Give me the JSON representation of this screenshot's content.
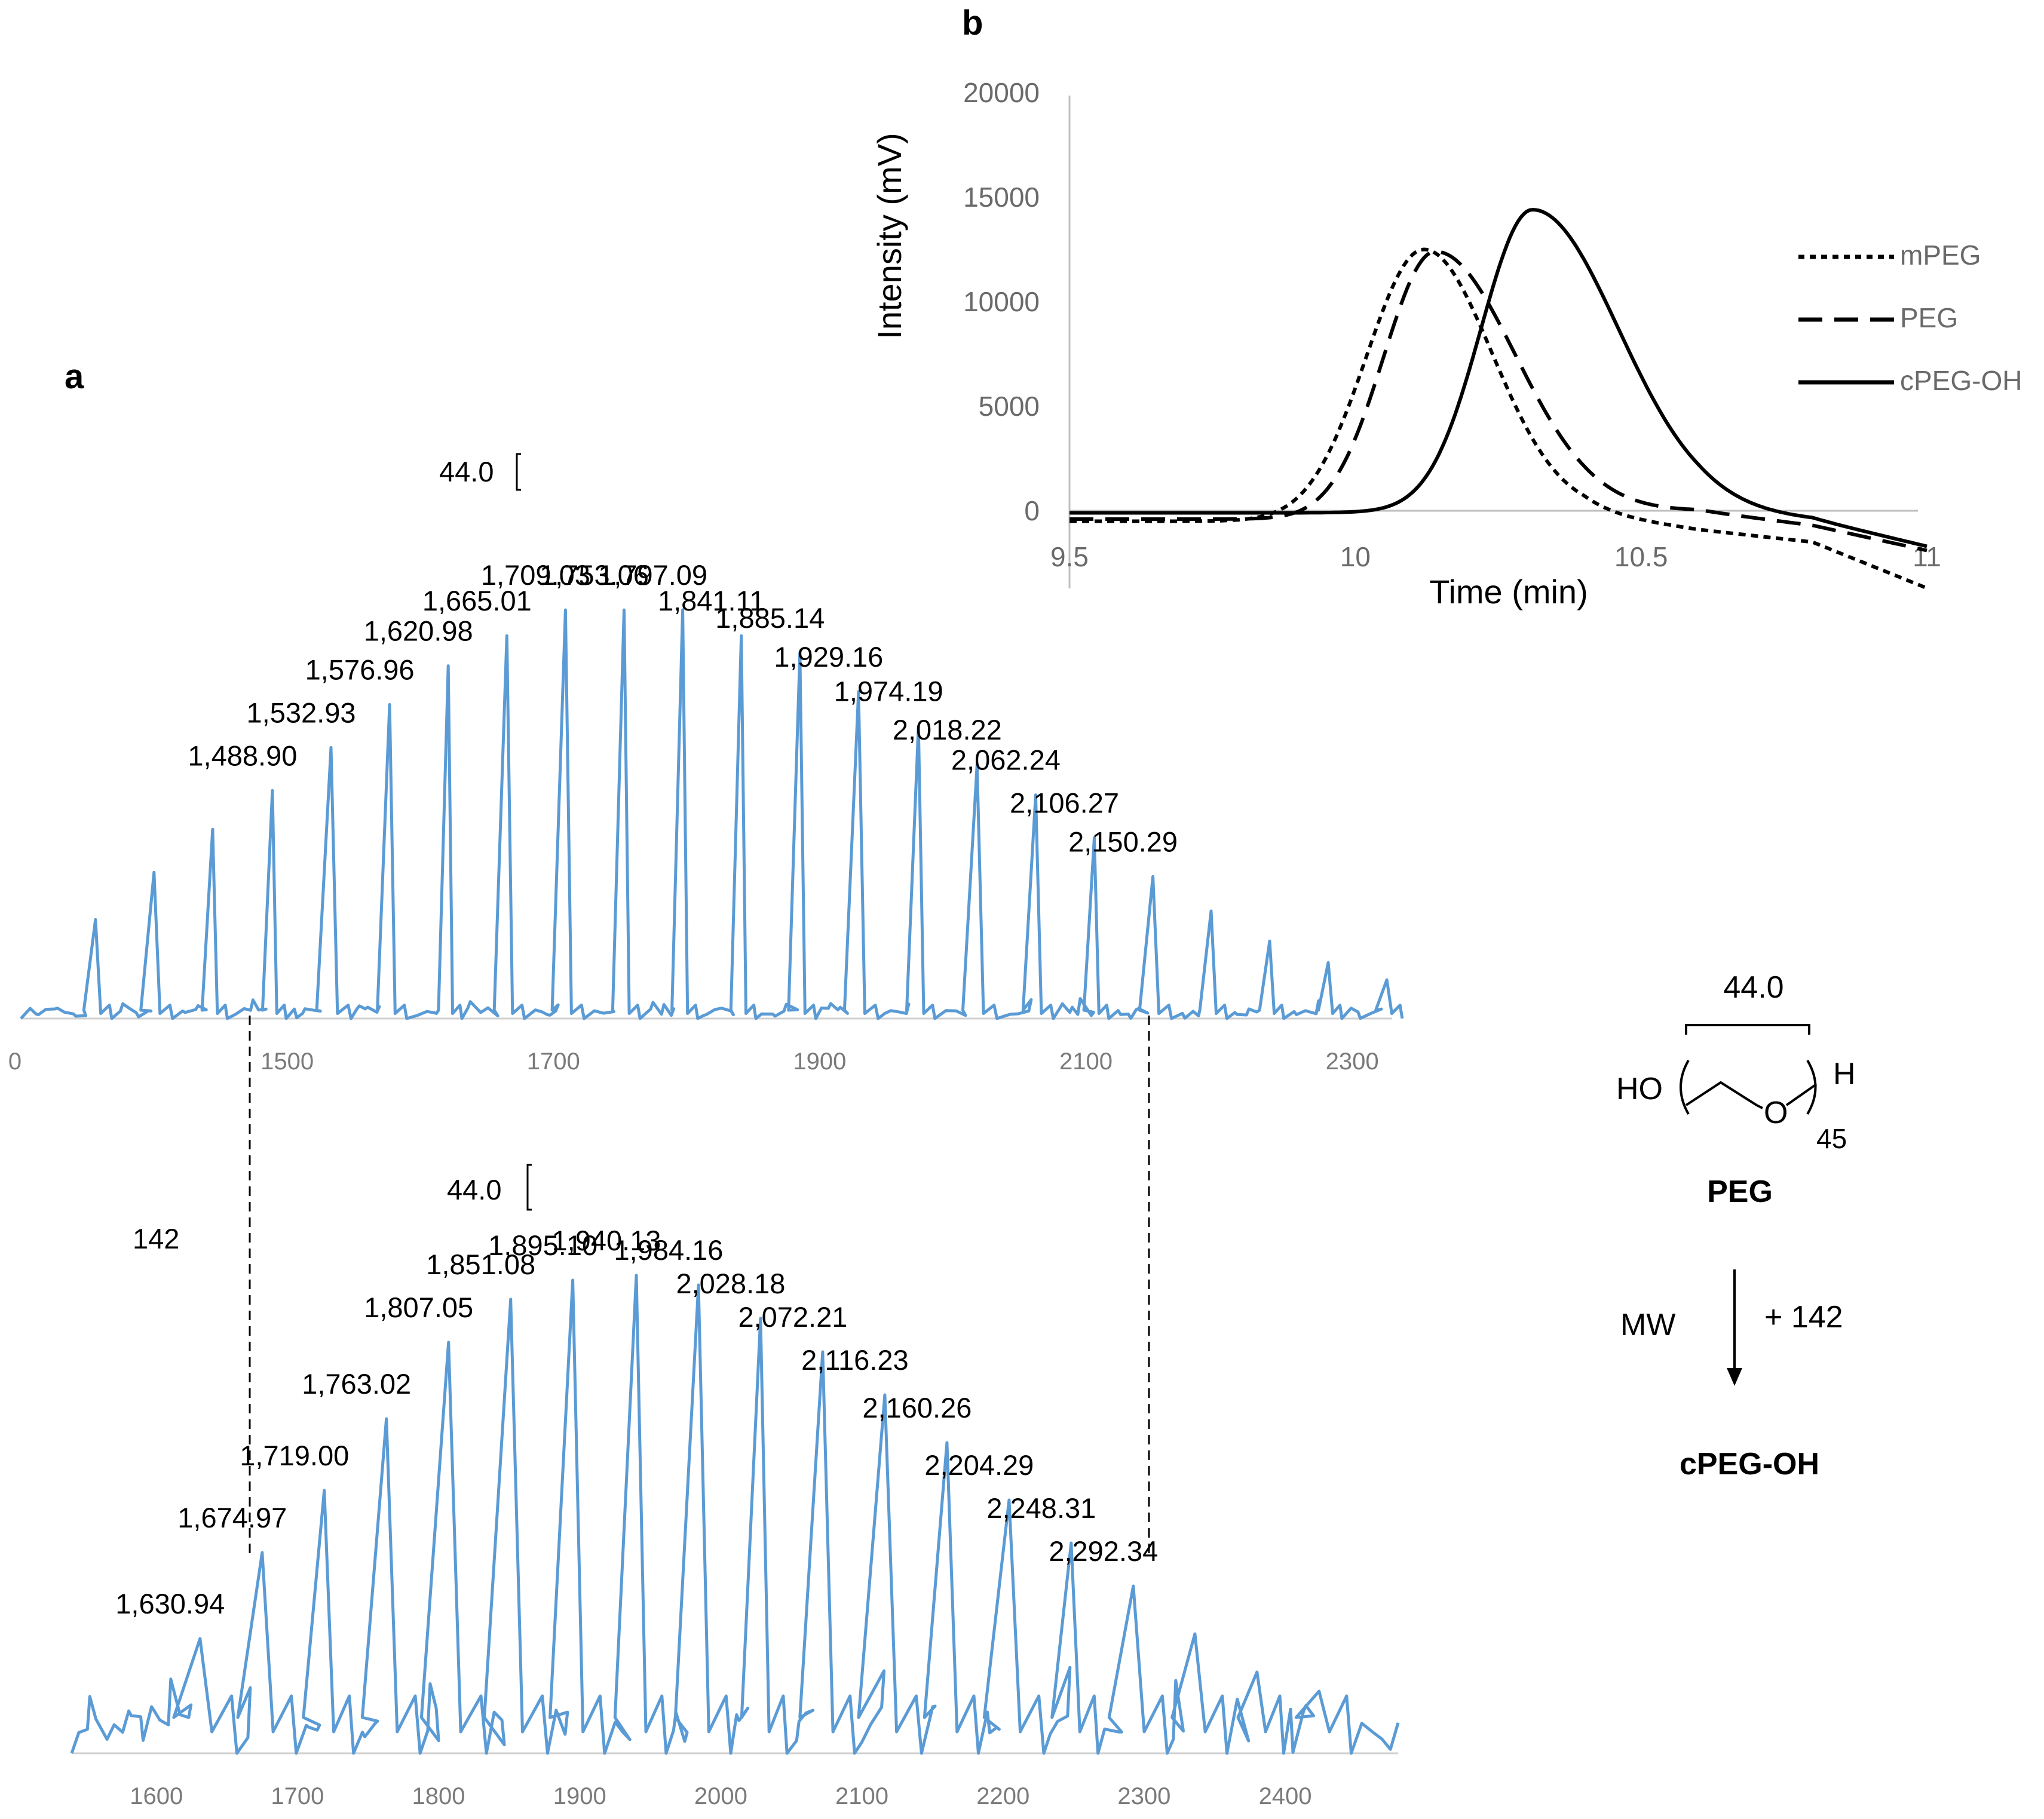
{
  "chart_data": [
    {
      "type": "line",
      "panel": "a",
      "subplot": "upper",
      "xlabel": "",
      "ylabel": "",
      "xlim": [
        1300,
        2330
      ],
      "x_tick_labels": [
        "0",
        "1500",
        "1700",
        "1900",
        "2100",
        "2300"
      ],
      "spacing_annotation": "44.0",
      "peaks": [
        {
          "x": 1356,
          "h": 0.23
        },
        {
          "x": 1400,
          "h": 0.34
        },
        {
          "x": 1444,
          "h": 0.44
        },
        {
          "x": 1488.9,
          "h": 0.53,
          "label": "1,488.90"
        },
        {
          "x": 1532.93,
          "h": 0.63,
          "label": "1,532.93"
        },
        {
          "x": 1576.96,
          "h": 0.73,
          "label": "1,576.96"
        },
        {
          "x": 1620.98,
          "h": 0.82,
          "label": "1,620.98"
        },
        {
          "x": 1665.01,
          "h": 0.89,
          "label": "1,665.01"
        },
        {
          "x": 1709.03,
          "h": 0.95,
          "label": "1,709.03"
        },
        {
          "x": 1753.06,
          "h": 0.95,
          "label": "1,753.06"
        },
        {
          "x": 1797.09,
          "h": 0.95,
          "label": "1,797.09"
        },
        {
          "x": 1841.11,
          "h": 0.89,
          "label": "1,841.11"
        },
        {
          "x": 1885.14,
          "h": 0.85,
          "label": "1,885.14"
        },
        {
          "x": 1929.16,
          "h": 0.76,
          "label": "1,929.16"
        },
        {
          "x": 1974.19,
          "h": 0.68,
          "label": "1,974.19"
        },
        {
          "x": 2018.22,
          "h": 0.59,
          "label": "2,018.22"
        },
        {
          "x": 2062.24,
          "h": 0.52,
          "label": "2,062.24"
        },
        {
          "x": 2106.27,
          "h": 0.42,
          "label": "2,106.27"
        },
        {
          "x": 2150.29,
          "h": 0.33,
          "label": "2,150.29"
        },
        {
          "x": 2194,
          "h": 0.25
        },
        {
          "x": 2238,
          "h": 0.18
        },
        {
          "x": 2282,
          "h": 0.13
        },
        {
          "x": 2326,
          "h": 0.09
        }
      ]
    },
    {
      "type": "line",
      "panel": "a",
      "subplot": "lower",
      "xlabel": "",
      "ylabel": "",
      "xlim": [
        1540,
        2480
      ],
      "x_tick_labels": [
        "1600",
        "1700",
        "1800",
        "1900",
        "2000",
        "2100",
        "2200",
        "2300",
        "2400"
      ],
      "spacing_annotation": "44.0",
      "mass_shift_label": "142",
      "peaks": [
        {
          "x": 1630.94,
          "h": 0.24,
          "label": "1,630.94"
        },
        {
          "x": 1674.97,
          "h": 0.42,
          "label": "1,674.97"
        },
        {
          "x": 1719.0,
          "h": 0.55,
          "label": "1,719.00"
        },
        {
          "x": 1763.02,
          "h": 0.7,
          "label": "1,763.02"
        },
        {
          "x": 1807.05,
          "h": 0.86,
          "label": "1,807.05"
        },
        {
          "x": 1851.08,
          "h": 0.95,
          "label": "1,851.08"
        },
        {
          "x": 1895.1,
          "h": 0.99,
          "label": "1,895.10"
        },
        {
          "x": 1940.13,
          "h": 1.0,
          "label": "1,940.13"
        },
        {
          "x": 1984.16,
          "h": 0.98,
          "label": "1,984.16"
        },
        {
          "x": 2028.18,
          "h": 0.91,
          "label": "2,028.18"
        },
        {
          "x": 2072.21,
          "h": 0.84,
          "label": "2,072.21"
        },
        {
          "x": 2116.23,
          "h": 0.75,
          "label": "2,116.23"
        },
        {
          "x": 2160.26,
          "h": 0.65,
          "label": "2,160.26"
        },
        {
          "x": 2204.29,
          "h": 0.53,
          "label": "2,204.29"
        },
        {
          "x": 2248.31,
          "h": 0.44,
          "label": "2,248.31"
        },
        {
          "x": 2292.34,
          "h": 0.35,
          "label": "2,292.34"
        },
        {
          "x": 2336,
          "h": 0.25
        },
        {
          "x": 2380,
          "h": 0.17
        },
        {
          "x": 2424,
          "h": 0.13
        }
      ]
    },
    {
      "type": "line",
      "panel": "b",
      "xlabel": "Time (min)",
      "ylabel": "Intensity (mV)",
      "xlim": [
        9.5,
        11
      ],
      "ylim": [
        -2000,
        20000
      ],
      "x_ticks": [
        "9.5",
        "10",
        "10.5",
        "11"
      ],
      "y_ticks": [
        "20000",
        "15000",
        "10000",
        "5000",
        "0"
      ],
      "legend_position": "right",
      "series": [
        {
          "name": "mPEG",
          "style": "dotted",
          "peak_x": 10.12,
          "peak_y": 12500,
          "sigma_left": 0.1,
          "sigma_right": 0.12,
          "start_y": -500,
          "tail": [
            [
              10.6,
              -900
            ],
            [
              10.8,
              -1500
            ],
            [
              11.0,
              -3700
            ]
          ]
        },
        {
          "name": "PEG",
          "style": "dashed",
          "peak_x": 10.14,
          "peak_y": 12400,
          "sigma_left": 0.09,
          "sigma_right": 0.14,
          "start_y": -400,
          "tail": [
            [
              10.6,
              0
            ],
            [
              10.8,
              -700
            ],
            [
              11.0,
              -1900
            ]
          ]
        },
        {
          "name": "cPEG-OH",
          "style": "solid",
          "peak_x": 10.31,
          "peak_y": 14400,
          "sigma_left": 0.09,
          "sigma_right": 0.15,
          "start_y": -100,
          "tail": [
            [
              10.6,
              0
            ],
            [
              10.8,
              -400
            ],
            [
              11.0,
              -1700
            ]
          ]
        }
      ]
    }
  ],
  "labels": {
    "panel_a": "a",
    "panel_b": "b",
    "scheme_repeat_mass": "44.0",
    "scheme_ho": "HO",
    "scheme_o": "O",
    "scheme_h": "H",
    "scheme_n": "45",
    "scheme_peg": "PEG",
    "scheme_mw": "MW",
    "scheme_plus": "+ 142",
    "scheme_product": "cPEG-OH"
  },
  "colors": {
    "spectrum": "#5b9bd5",
    "chromatogram": "#000000",
    "axis": "#bfbfbf"
  }
}
